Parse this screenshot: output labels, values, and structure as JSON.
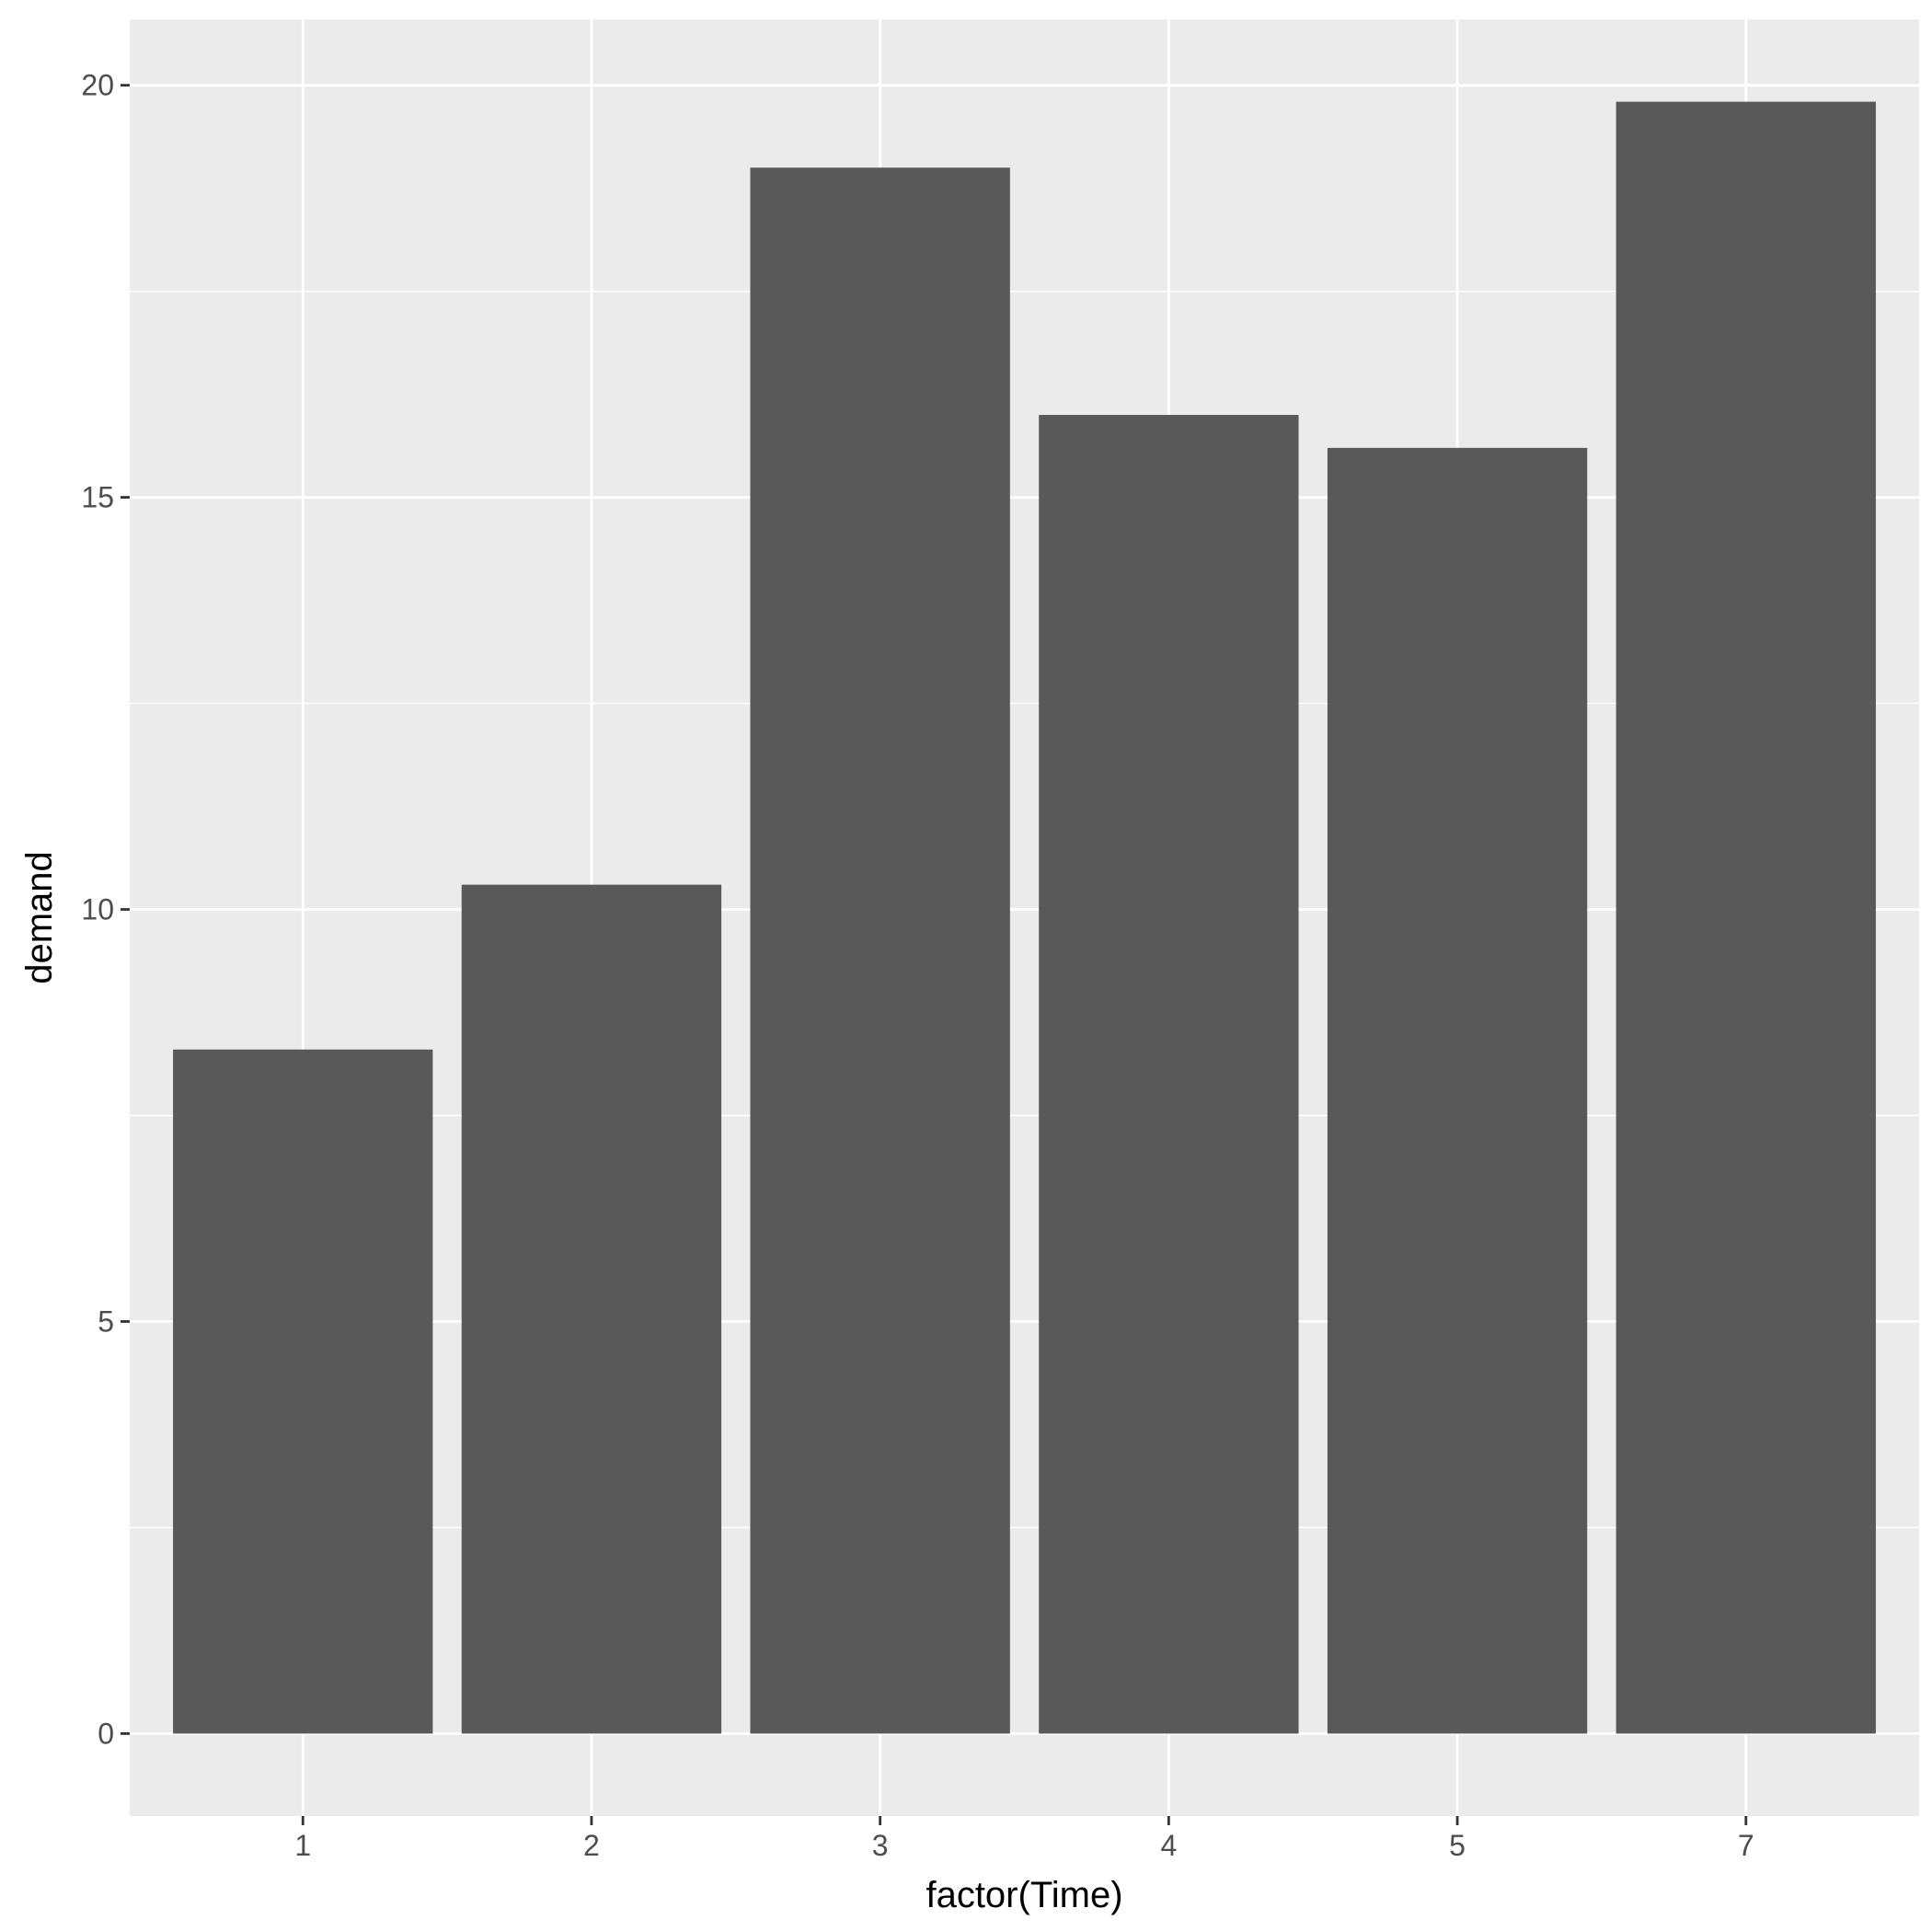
{
  "chart_data": {
    "type": "bar",
    "categories": [
      "1",
      "2",
      "3",
      "4",
      "5",
      "7"
    ],
    "values": [
      8.3,
      10.3,
      19.0,
      16.0,
      15.6,
      19.8
    ],
    "xlabel": "factor(Time)",
    "ylabel": "demand",
    "ylim": [
      -1,
      20.8
    ],
    "yticks": [
      0,
      5,
      10,
      15,
      20
    ],
    "ytick_labels": [
      "0",
      "5",
      "10",
      "15",
      "20"
    ],
    "grid": true,
    "colors": {
      "bar": "#595959",
      "panel_background": "#ebebeb",
      "grid": "#ffffff",
      "tick_text": "#4d4d4d",
      "axis_title": "#000000"
    }
  }
}
